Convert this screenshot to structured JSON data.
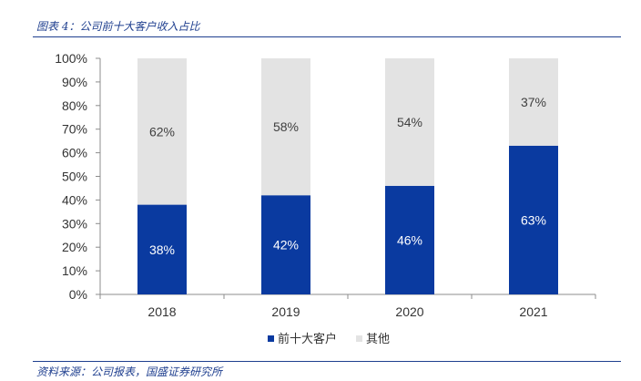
{
  "caption": "图表 4：公司前十大客户收入占比",
  "source": "资料来源：公司报表，国盛证券研究所",
  "colors": {
    "top_customers": "#0a3aa0",
    "others": "#e3e3e3",
    "accent": "#1f3f8f"
  },
  "chart_data": {
    "type": "bar",
    "stacked": true,
    "categories": [
      "2018",
      "2019",
      "2020",
      "2021"
    ],
    "series": [
      {
        "name": "前十大客户",
        "values": [
          38,
          42,
          46,
          63
        ],
        "labels": [
          "38%",
          "42%",
          "46%",
          "63%"
        ]
      },
      {
        "name": "其他",
        "values": [
          62,
          58,
          54,
          37
        ],
        "labels": [
          "62%",
          "58%",
          "54%",
          "37%"
        ]
      }
    ],
    "ylim": [
      0,
      100
    ],
    "yticks": [
      "0%",
      "10%",
      "20%",
      "30%",
      "40%",
      "50%",
      "60%",
      "70%",
      "80%",
      "90%",
      "100%"
    ],
    "grid": false,
    "legend_position": "bottom"
  }
}
